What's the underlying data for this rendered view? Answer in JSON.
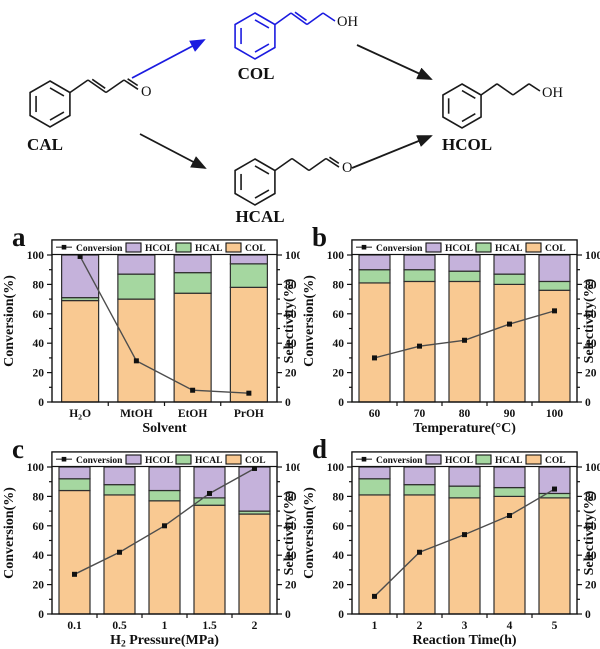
{
  "scheme": {
    "labels": {
      "cal": "CAL",
      "col": "COL",
      "hcal": "HCAL",
      "hcol": "HCOL",
      "o": "O",
      "oh": "OH"
    },
    "highlight_color": "#1b1be0",
    "line_color": "#1a1a1a"
  },
  "chart_defaults": {
    "legend": [
      "Conversion",
      "HCOL",
      "HCAL",
      "COL"
    ],
    "ylabel_left": "Conversion(%)",
    "ylabel_right": "Selectivity(%)",
    "yticks": [
      0,
      20,
      40,
      60,
      80,
      100
    ],
    "ylim": [
      0,
      100
    ],
    "grid": "off",
    "legend_position": "top-inside",
    "colors": {
      "COL": "#F9C992",
      "HCAL": "#A5D7A0",
      "HCOL": "#C5B2DB",
      "conversion_line": "#4d4d4d",
      "marker": "#111111",
      "bar_edge": "#2e2e2e"
    }
  },
  "chart_data": [
    {
      "panel": "a",
      "type": "bar",
      "stacked": true,
      "xlabel": "Solvent",
      "categories": [
        "H₂O",
        "MtOH",
        "EtOH",
        "PrOH"
      ],
      "series": [
        {
          "name": "COL",
          "values": [
            69,
            70,
            74,
            78
          ]
        },
        {
          "name": "HCAL",
          "values": [
            2,
            17,
            14,
            16
          ]
        },
        {
          "name": "HCOL",
          "values": [
            29,
            13,
            12,
            6
          ]
        }
      ],
      "line": {
        "name": "Conversion",
        "values": [
          99,
          28,
          8,
          6
        ]
      }
    },
    {
      "panel": "b",
      "type": "bar",
      "stacked": true,
      "xlabel": "Temperature(°C)",
      "categories": [
        "60",
        "70",
        "80",
        "90",
        "100"
      ],
      "series": [
        {
          "name": "COL",
          "values": [
            81,
            82,
            82,
            80,
            76
          ]
        },
        {
          "name": "HCAL",
          "values": [
            9,
            8,
            7,
            7,
            6
          ]
        },
        {
          "name": "HCOL",
          "values": [
            10,
            10,
            11,
            13,
            18
          ]
        }
      ],
      "line": {
        "name": "Conversion",
        "values": [
          30,
          38,
          42,
          53,
          62
        ]
      }
    },
    {
      "panel": "c",
      "type": "bar",
      "stacked": true,
      "xlabel": "H₂ Pressure(MPa)",
      "categories": [
        "0.1",
        "0.5",
        "1",
        "1.5",
        "2"
      ],
      "series": [
        {
          "name": "COL",
          "values": [
            84,
            81,
            77,
            74,
            68
          ]
        },
        {
          "name": "HCAL",
          "values": [
            8,
            7,
            7,
            5,
            2
          ]
        },
        {
          "name": "HCOL",
          "values": [
            8,
            12,
            16,
            21,
            30
          ]
        }
      ],
      "line": {
        "name": "Conversion",
        "values": [
          27,
          42,
          60,
          82,
          99
        ]
      }
    },
    {
      "panel": "d",
      "type": "bar",
      "stacked": true,
      "xlabel": "Reaction Time(h)",
      "categories": [
        "1",
        "2",
        "3",
        "4",
        "5"
      ],
      "series": [
        {
          "name": "COL",
          "values": [
            81,
            81,
            79,
            80,
            79
          ]
        },
        {
          "name": "HCAL",
          "values": [
            11,
            7,
            8,
            6,
            3
          ]
        },
        {
          "name": "HCOL",
          "values": [
            8,
            12,
            13,
            14,
            18
          ]
        }
      ],
      "line": {
        "name": "Conversion",
        "values": [
          12,
          42,
          54,
          67,
          85
        ]
      }
    }
  ]
}
